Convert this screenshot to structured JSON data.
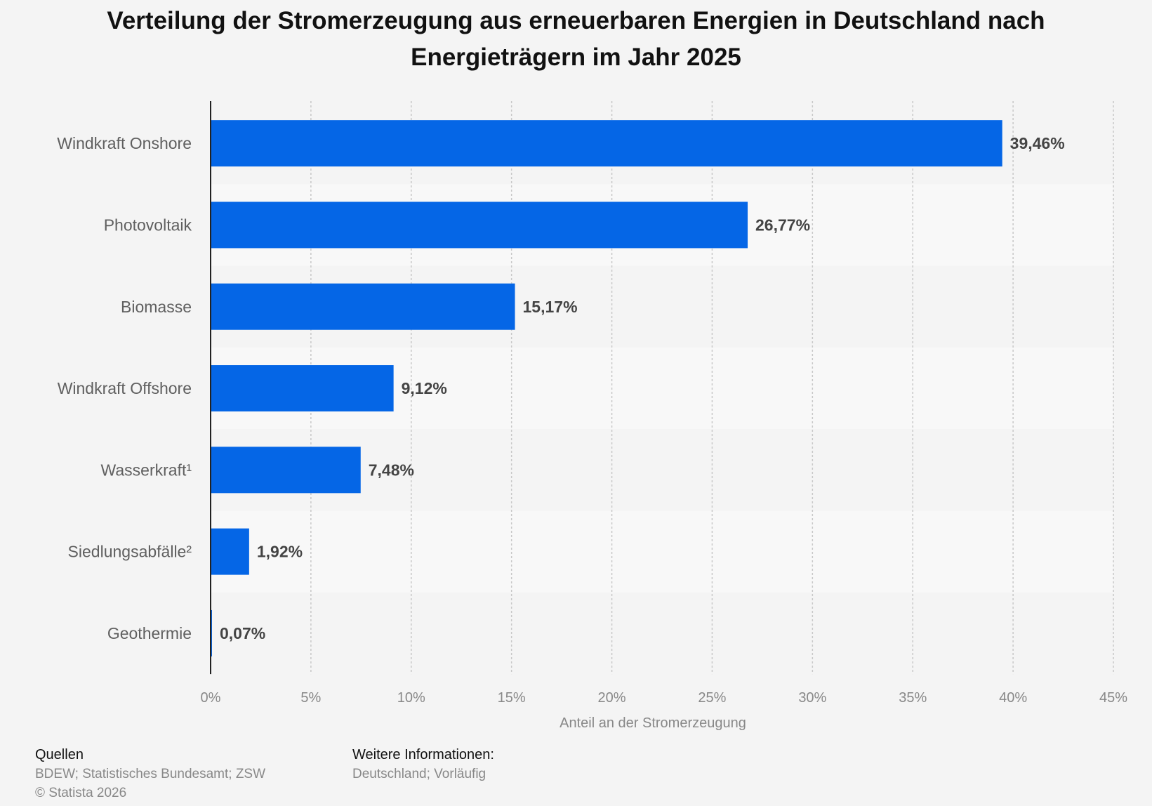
{
  "chart_data": {
    "type": "bar",
    "orientation": "horizontal",
    "title": "Verteilung der Stromerzeugung aus erneuerbaren Energien in Deutschland nach Energieträgern im Jahr 2025",
    "categories": [
      "Windkraft Onshore",
      "Photovoltaik",
      "Biomasse",
      "Windkraft Offshore",
      "Wasserkraft¹",
      "Siedlungsabfälle²",
      "Geothermie"
    ],
    "values": [
      39.46,
      26.77,
      15.17,
      9.12,
      7.48,
      1.92,
      0.07
    ],
    "value_labels": [
      "39,46%",
      "26,77%",
      "15,17%",
      "9,12%",
      "7,48%",
      "1,92%",
      "0,07%"
    ],
    "xlabel": "Anteil an der Stromerzeugung",
    "xlim": [
      0,
      45
    ],
    "xticks": [
      0,
      5,
      10,
      15,
      20,
      25,
      30,
      35,
      40,
      45
    ],
    "xtick_labels": [
      "0%",
      "5%",
      "10%",
      "15%",
      "20%",
      "25%",
      "30%",
      "35%",
      "40%",
      "45%"
    ],
    "grid": true,
    "legend": "none",
    "colors": {
      "bar": "#0566e6",
      "background": "#f4f4f4",
      "band_light": "#f8f8f8"
    }
  },
  "footer": {
    "sources_heading": "Quellen",
    "sources_text": "BDEW; Statistisches Bundesamt; ZSW",
    "copyright": "© Statista 2026",
    "info_heading": "Weitere Informationen:",
    "info_text": "Deutschland; Vorläufig"
  }
}
